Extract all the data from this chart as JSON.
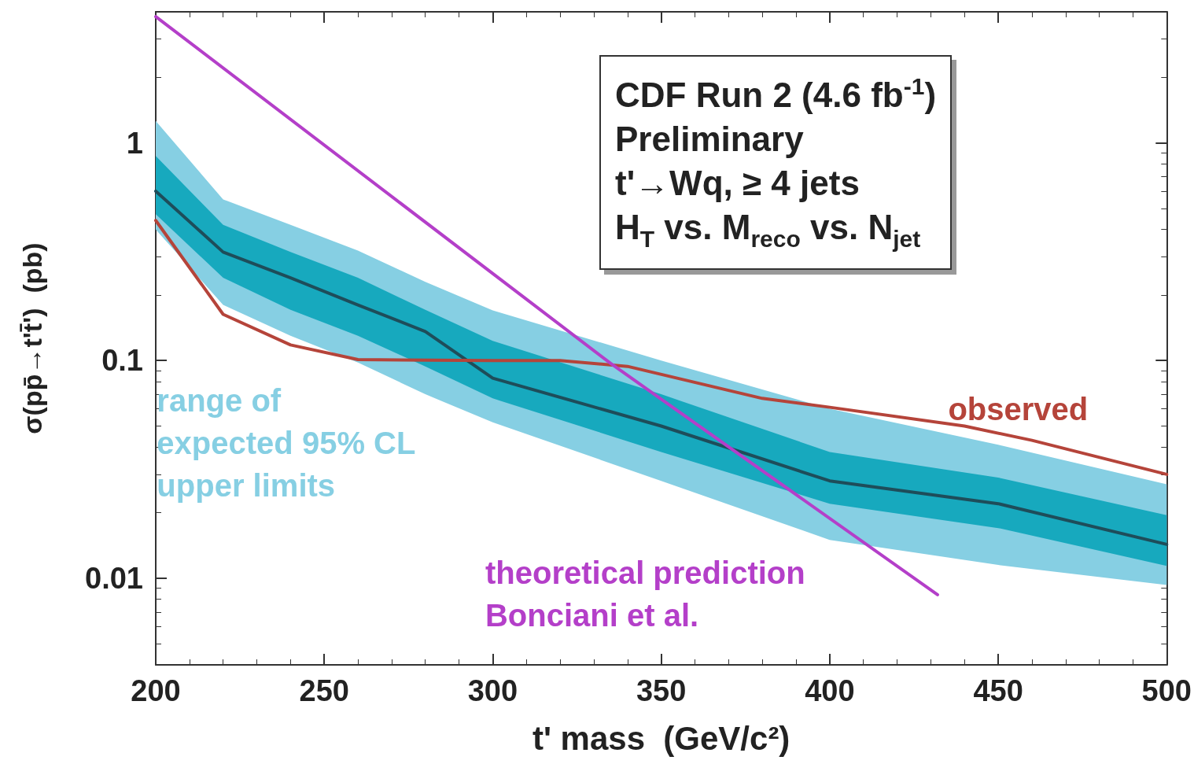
{
  "chart_data": {
    "type": "line",
    "xlabel": "t' mass  (GeV/c²)",
    "ylabel": "σ(pp̄→t't̄')  (pb)",
    "x": [
      200,
      220,
      240,
      260,
      280,
      300,
      350,
      400,
      450,
      500
    ],
    "series": [
      {
        "name": "range of\nexpected 95% CL\nupper limits",
        "color": "#86cfe3",
        "values": [
          null,
          null,
          null,
          null,
          null,
          null,
          null,
          null,
          null,
          null
        ],
        "lower": [
          0.4,
          0.18,
          0.13,
          0.098,
          0.07,
          0.052,
          0.028,
          0.015,
          0.0115,
          0.0093
        ],
        "upper": [
          1.26,
          0.55,
          0.42,
          0.32,
          0.23,
          0.17,
          0.1,
          0.06,
          0.041,
          0.027
        ]
      },
      {
        "color": "#17a9be",
        "values": [
          null,
          null,
          null,
          null,
          null,
          null,
          null,
          null,
          null,
          null
        ],
        "lower": [
          0.47,
          0.24,
          0.171,
          0.13,
          0.094,
          0.067,
          0.038,
          0.022,
          0.017,
          0.0114
        ],
        "upper": [
          0.87,
          0.42,
          0.315,
          0.24,
          0.171,
          0.123,
          0.07,
          0.038,
          0.029,
          0.0195
        ]
      },
      {
        "color": "#1e4d5a",
        "values": [
          0.6,
          0.315,
          0.24,
          0.18,
          0.136,
          0.083,
          0.05,
          0.028,
          0.022,
          0.0143
        ]
      },
      {
        "name": "observed",
        "color": "#b5443a",
        "x": [
          200,
          220,
          240,
          260,
          300,
          320,
          340,
          380,
          400,
          440,
          460,
          500
        ],
        "values": [
          0.44,
          0.163,
          0.118,
          0.101,
          0.1,
          0.1,
          0.094,
          0.067,
          0.061,
          0.05,
          0.043,
          0.03
        ]
      },
      {
        "name": "theoretical prediction\nBonciani et al.",
        "color": "#b43fc9",
        "x": [
          200,
          335,
          432
        ],
        "values": [
          3.8,
          0.097,
          0.0084
        ]
      }
    ],
    "log": "y",
    "xlim": [
      200,
      500
    ],
    "xticks": [
      200,
      250,
      300,
      350,
      400,
      450,
      500
    ],
    "ylim": [
      0.004,
      4
    ],
    "yticks": [
      0.01,
      0.1,
      1
    ],
    "marker": "none",
    "annotations": [
      "CDF Run 2 (4.6 fb$^{-1}$)",
      "Preliminary",
      "t'→Wq, ≥ 4 jets",
      "H$_{T}$ vs. M$_{reco}$ vs. N$_{jet}$"
    ]
  }
}
